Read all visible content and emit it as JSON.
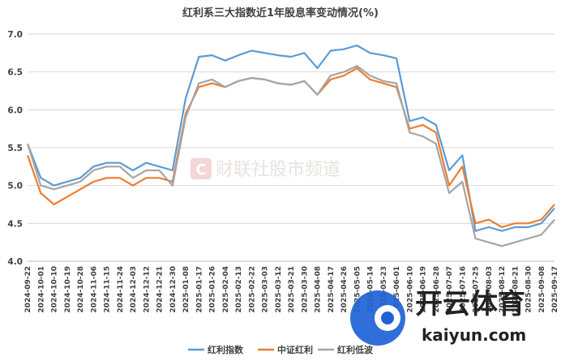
{
  "chart_data": {
    "type": "line",
    "title": "红利系三大指数近1年股息率变动情况(%)",
    "ylim": [
      4.0,
      7.0
    ],
    "yticks": [
      "7.0",
      "6.5",
      "6.0",
      "5.5",
      "5.0",
      "4.5",
      "4.0"
    ],
    "grid": true,
    "legend_position": "bottom",
    "x": [
      "2024-09-22",
      "2024-10-01",
      "2024-10-10",
      "2024-10-19",
      "2024-10-28",
      "2024-11-06",
      "2024-11-15",
      "2024-11-24",
      "2024-12-03",
      "2024-12-12",
      "2024-12-21",
      "2024-12-30",
      "2025-01-08",
      "2025-01-17",
      "2025-01-26",
      "2025-02-04",
      "2025-02-13",
      "2025-02-22",
      "2025-03-03",
      "2025-03-12",
      "2025-03-21",
      "2025-03-30",
      "2025-04-08",
      "2025-04-17",
      "2025-04-26",
      "2025-05-05",
      "2025-05-14",
      "2025-05-23",
      "2025-06-01",
      "2025-06-10",
      "2025-06-19",
      "2025-06-28",
      "2025-07-07",
      "2025-07-16",
      "2025-07-25",
      "2025-08-03",
      "2025-08-12",
      "2025-08-21",
      "2025-08-30",
      "2025-09-08",
      "2025-09-17"
    ],
    "xticks": [
      "2024-09-22",
      "2024-10-01",
      "2024-10-10",
      "2024-10-19",
      "2024-10-28",
      "2024-11-06",
      "2024-11-15",
      "2024-11-24",
      "2024-12-03",
      "2024-12-12",
      "2024-12-21",
      "2024-12-30",
      "2025-01-08",
      "2025-01-17",
      "2025-01-26",
      "2025-02-04",
      "2025-02-13",
      "2025-02-22",
      "2025-03-03",
      "2025-03-12",
      "2025-03-21",
      "2025-03-30",
      "2025-04-08",
      "2025-04-17",
      "2025-04-26",
      "2025-05-05",
      "2025-05-14",
      "2025-05-23",
      "2025-06-01",
      "2025-06-10",
      "2025-06-19",
      "2025-06-28",
      "2025-07-07",
      "2025-07-16",
      "2025-07-25",
      "2025-08-03",
      "2025-08-12",
      "2025-08-21",
      "2025-08-30",
      "2025-09-08",
      "2025-09-17"
    ],
    "series": [
      {
        "name": "红利指数",
        "color": "#5b9bd5",
        "values": [
          5.55,
          5.1,
          5.0,
          5.05,
          5.1,
          5.25,
          5.3,
          5.3,
          5.2,
          5.3,
          5.25,
          5.2,
          6.15,
          6.7,
          6.72,
          6.65,
          6.72,
          6.78,
          6.75,
          6.72,
          6.7,
          6.75,
          6.55,
          6.78,
          6.8,
          6.85,
          6.75,
          6.72,
          6.68,
          5.85,
          5.9,
          5.8,
          5.2,
          5.4,
          4.4,
          4.45,
          4.4,
          4.45,
          4.45,
          4.5,
          4.7
        ]
      },
      {
        "name": "中证红利",
        "color": "#ed7d31",
        "values": [
          5.4,
          4.9,
          4.75,
          4.85,
          4.95,
          5.05,
          5.1,
          5.1,
          5.0,
          5.1,
          5.1,
          5.05,
          5.95,
          6.3,
          6.35,
          6.3,
          6.38,
          6.42,
          6.4,
          6.35,
          6.33,
          6.38,
          6.2,
          6.4,
          6.45,
          6.55,
          6.4,
          6.35,
          6.3,
          5.75,
          5.8,
          5.7,
          5.0,
          5.25,
          4.5,
          4.55,
          4.45,
          4.5,
          4.5,
          4.55,
          4.75
        ]
      },
      {
        "name": "红利低波",
        "color": "#a5a5a5",
        "values": [
          5.55,
          5.0,
          4.95,
          5.0,
          5.05,
          5.2,
          5.25,
          5.25,
          5.1,
          5.2,
          5.2,
          5.0,
          5.9,
          6.35,
          6.4,
          6.3,
          6.38,
          6.42,
          6.4,
          6.35,
          6.33,
          6.38,
          6.2,
          6.45,
          6.5,
          6.58,
          6.45,
          6.38,
          6.35,
          5.7,
          5.65,
          5.55,
          4.9,
          5.05,
          4.3,
          4.25,
          4.2,
          4.25,
          4.3,
          4.35,
          4.55
        ]
      }
    ]
  },
  "watermark": {
    "logo_letter": "C",
    "text": "财联社股市频道"
  },
  "brand": {
    "cn": "开云体育",
    "en": "kaiyun.com"
  }
}
